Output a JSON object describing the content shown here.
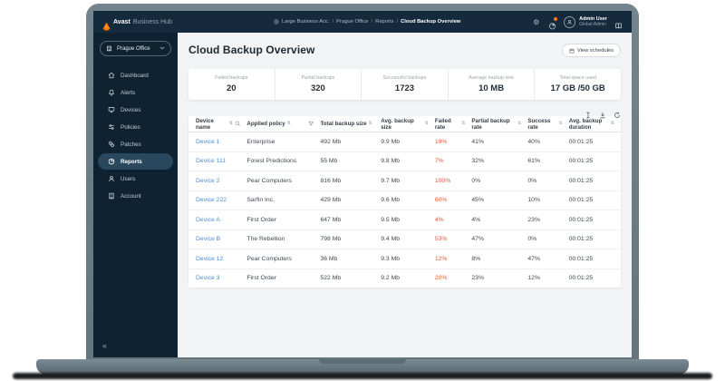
{
  "topbar": {
    "brand_bold": "Avast",
    "brand_rest": "Business Hub",
    "breadcrumb": {
      "sep": "/",
      "items": [
        "Large Business Acc.",
        "Prague Office",
        "Reports"
      ],
      "current": "Cloud Backup Overview"
    },
    "gear_glyph": "⚙",
    "user": {
      "name": "Admin User",
      "role": "Global Admin"
    }
  },
  "sidebar": {
    "site_selector": "Prague Office",
    "collapse_glyph": "«",
    "items": [
      {
        "label": "Dashboard",
        "icon": "home-icon",
        "active": false
      },
      {
        "label": "Alerts",
        "icon": "bell-icon",
        "active": false
      },
      {
        "label": "Devices",
        "icon": "monitor-icon",
        "active": false
      },
      {
        "label": "Policies",
        "icon": "sliders-icon",
        "active": false
      },
      {
        "label": "Patches",
        "icon": "patch-icon",
        "active": false
      },
      {
        "label": "Reports",
        "icon": "pie-chart-icon",
        "active": true
      },
      {
        "label": "Users",
        "icon": "user-icon",
        "active": false
      },
      {
        "label": "Account",
        "icon": "building-icon",
        "active": false
      }
    ]
  },
  "page": {
    "title": "Cloud Backup Overview",
    "view_schedules_label": "View schedules"
  },
  "stats": [
    {
      "label": "Failed backups",
      "value": "20"
    },
    {
      "label": "Partial backups",
      "value": "320"
    },
    {
      "label": "Successful backups",
      "value": "1723"
    },
    {
      "label": "Average backup size",
      "value": "10 MB"
    },
    {
      "label": "Total space used",
      "value": "17 GB /50 GB"
    }
  ],
  "table": {
    "sort_glyph": "⇅",
    "columns": [
      {
        "label": "Device name"
      },
      {
        "label": "Applied policy"
      },
      {
        "label": "Total backup size"
      },
      {
        "label": "Avg. backup size"
      },
      {
        "label": "Failed rate"
      },
      {
        "label": "Partial backup rate"
      },
      {
        "label": "Success rate"
      },
      {
        "label": "Avg. backup duration"
      }
    ],
    "rows": [
      {
        "device": "Device 1",
        "policy": "Enterprise",
        "total": "492 Mb",
        "avg": "9.9 Mb",
        "failed": "19%",
        "partial": "41%",
        "success": "40%",
        "duration": "00:01:25"
      },
      {
        "device": "Device 111",
        "policy": "Forest Predictions",
        "total": "55 Mb",
        "avg": "9.8 Mb",
        "failed": "7%",
        "partial": "32%",
        "success": "61%",
        "duration": "00:01:25"
      },
      {
        "device": "Device 2",
        "policy": "Pear Computers",
        "total": "816 Mb",
        "avg": "9.7 Mb",
        "failed": "100%",
        "partial": "0%",
        "success": "0%",
        "duration": "00:01:25"
      },
      {
        "device": "Device 222",
        "policy": "Sarfin Inc.",
        "total": "429 Mb",
        "avg": "9.6 Mb",
        "failed": "60%",
        "partial": "45%",
        "success": "10%",
        "duration": "00:01:25"
      },
      {
        "device": "Device A",
        "policy": "First Order",
        "total": "647 Mb",
        "avg": "9.5 Mb",
        "failed": "4%",
        "partial": "4%",
        "success": "23%",
        "duration": "00:01:25"
      },
      {
        "device": "Device B",
        "policy": "The Rebellion",
        "total": "798 Mb",
        "avg": "9.4 Mb",
        "failed": "53%",
        "partial": "47%",
        "success": "0%",
        "duration": "00:01:25"
      },
      {
        "device": "Device 12",
        "policy": "Pear Computers",
        "total": "36 Mb",
        "avg": "9.3 Mb",
        "failed": "12%",
        "partial": "8%",
        "success": "47%",
        "duration": "00:01:25"
      },
      {
        "device": "Device 3",
        "policy": "First Order",
        "total": "522 Mb",
        "avg": "9.2 Mb",
        "failed": "20%",
        "partial": "23%",
        "success": "12%",
        "duration": "00:01:25"
      }
    ]
  },
  "colors": {
    "accent_orange": "#ff7800",
    "link_blue": "#4d8ed3",
    "failed_red": "#e3593e",
    "topbar_navy": "#152a3c",
    "sidebar_navy": "#0f2231"
  }
}
